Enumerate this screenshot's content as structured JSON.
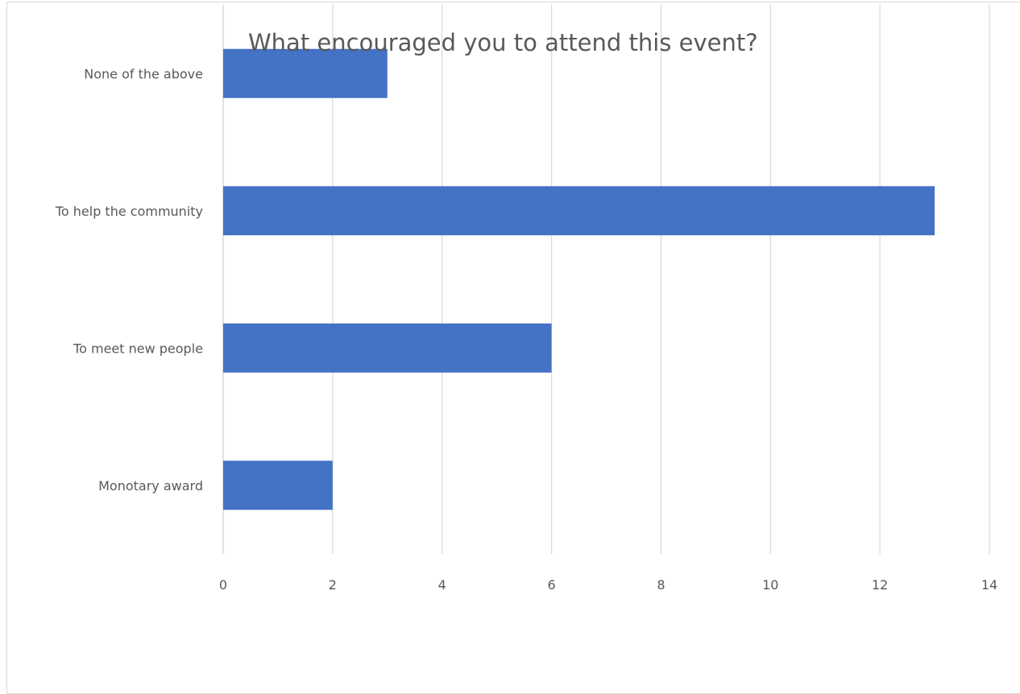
{
  "chart_data": {
    "type": "bar",
    "orientation": "horizontal",
    "title": "What encouraged you to attend this event?",
    "categories": [
      "Monotary award",
      "To meet new people",
      "To help the community",
      "None of the above"
    ],
    "values": [
      2,
      6,
      13,
      3
    ],
    "xlim": [
      0,
      14
    ],
    "xticks": [
      0,
      2,
      4,
      6,
      8,
      10,
      12,
      14
    ],
    "xlabel": "",
    "ylabel": "",
    "grid": true,
    "legend": "none",
    "bar_color": "#4472c4",
    "grid_color": "#d9d9d9",
    "text_color": "#595959"
  }
}
